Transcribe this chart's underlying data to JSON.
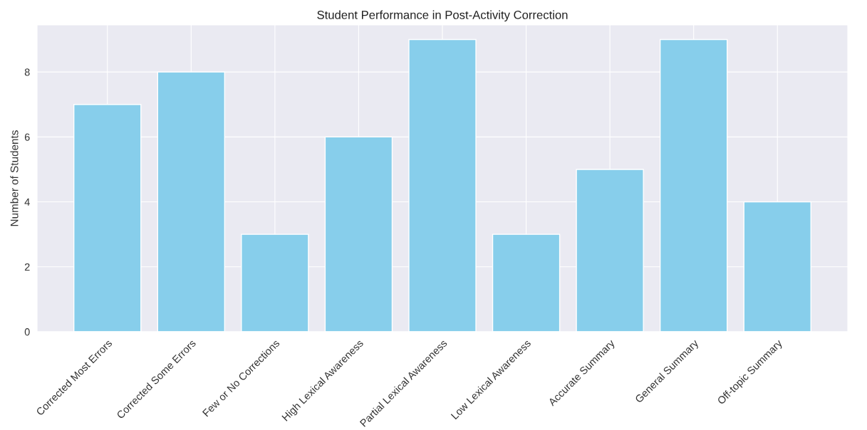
{
  "chart_data": {
    "type": "bar",
    "title": "Student Performance in Post-Activity Correction",
    "ylabel": "Number of Students",
    "categories": [
      "Corrected Most Errors",
      "Corrected Some Errors",
      "Few or No Corrections",
      "High Lexical Awareness",
      "Partial Lexical Awareness",
      "Low Lexical Awareness",
      "Accurate Summary",
      "General Summary",
      "Off-topic Summary"
    ],
    "values": [
      7,
      8,
      3,
      6,
      9,
      3,
      5,
      9,
      4
    ],
    "color": "#87ceeb",
    "ylim": [
      0,
      9.45
    ],
    "yticks": [
      0,
      2,
      4,
      6,
      8
    ],
    "grid": true
  }
}
